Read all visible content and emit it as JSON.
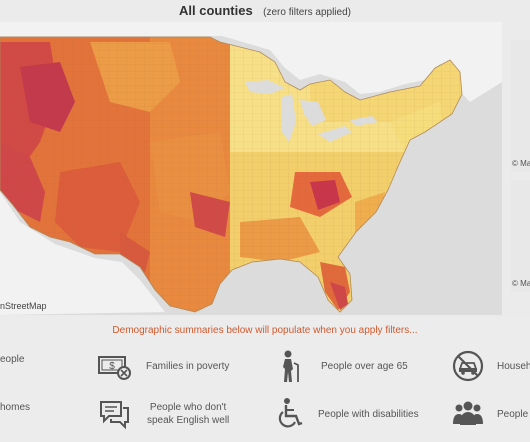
{
  "header": {
    "title": "All counties",
    "subtitle": "(zero filters applied)"
  },
  "map": {
    "attribution": "nStreetMap",
    "inset_attribution": "© Ma",
    "land_color": "#f0f0f0",
    "water_color": "#dcdcdc"
  },
  "summary_panel": {
    "message": "Demographic summaries below will populate when you apply filters...",
    "message_color": "#d15a2e",
    "items": [
      {
        "label": "eople",
        "icon": "people-icon"
      },
      {
        "label": "Families in poverty",
        "icon": "money-cross-icon"
      },
      {
        "label": "People over age 65",
        "icon": "elderly-person-icon"
      },
      {
        "label": "Househ",
        "icon": "no-car-icon"
      },
      {
        "label": "homes",
        "icon": "homes-icon"
      },
      {
        "label": "People who don't speak English well",
        "icon": "speech-bubble-icon"
      },
      {
        "label": "People with disabilities",
        "icon": "wheelchair-icon"
      },
      {
        "label": "People",
        "icon": "group-people-icon"
      }
    ]
  },
  "legend_colors": [
    "#f6dd7c",
    "#f3c860",
    "#eea34a",
    "#e57a3b",
    "#d9543c",
    "#c7364a"
  ]
}
